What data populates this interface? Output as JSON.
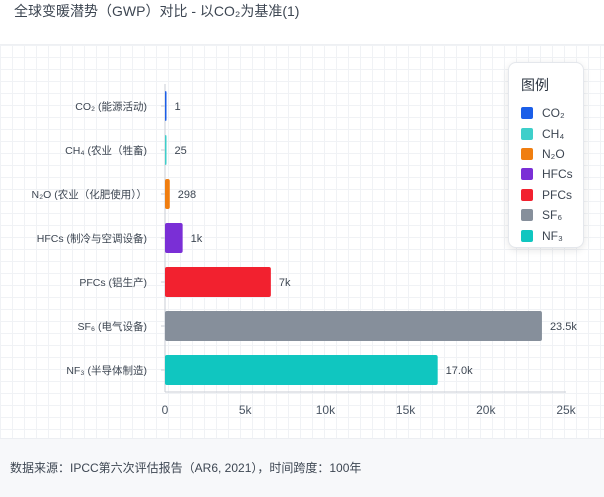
{
  "title": "全球变暖潜势（GWP）对比 - 以CO₂为基准(1)",
  "footer": {
    "note": "数据来源：IPCC第六次评估报告（AR6, 2021），时间跨度：100年"
  },
  "legend": {
    "title": "图例",
    "items": [
      {
        "label": "CO₂",
        "color": "#1b5ee8"
      },
      {
        "label": "CH₄",
        "color": "#3ecfca"
      },
      {
        "label": "N₂O",
        "color": "#f07e10"
      },
      {
        "label": "HFCs",
        "color": "#7a2fd6"
      },
      {
        "label": "PFCs",
        "color": "#f2212f"
      },
      {
        "label": "SF₆",
        "color": "#868f9b"
      },
      {
        "label": "NF₃",
        "color": "#10c6c0"
      }
    ]
  },
  "chart_data": {
    "type": "bar",
    "orientation": "horizontal",
    "title": "全球变暖潜势（GWP）对比 - 以CO₂为基准(1)",
    "categories": [
      "CO₂ (能源活动)",
      "CH₄ (农业（牲畜)",
      "N₂O (农业（化肥使用））",
      "HFCs (制冷与空调设备)",
      "PFCs (铝生产)",
      "SF₆ (电气设备)",
      "NF₃ (半导体制造)"
    ],
    "values": [
      1,
      25,
      298,
      1100,
      6600,
      23500,
      17000
    ],
    "value_labels": [
      "1",
      "25",
      "298",
      "1k",
      "7k",
      "23.5k",
      "17.0k"
    ],
    "colors": [
      "#1b5ee8",
      "#3ecfca",
      "#f07e10",
      "#7a2fd6",
      "#f2212f",
      "#868f9b",
      "#10c6c0"
    ],
    "xlim": [
      0,
      25000
    ],
    "xticks": [
      0,
      5000,
      10000,
      15000,
      20000,
      25000
    ],
    "xtick_labels": [
      "0",
      "5k",
      "10k",
      "15k",
      "20k",
      "25k"
    ],
    "grid": true,
    "legend_position": "top-right"
  }
}
